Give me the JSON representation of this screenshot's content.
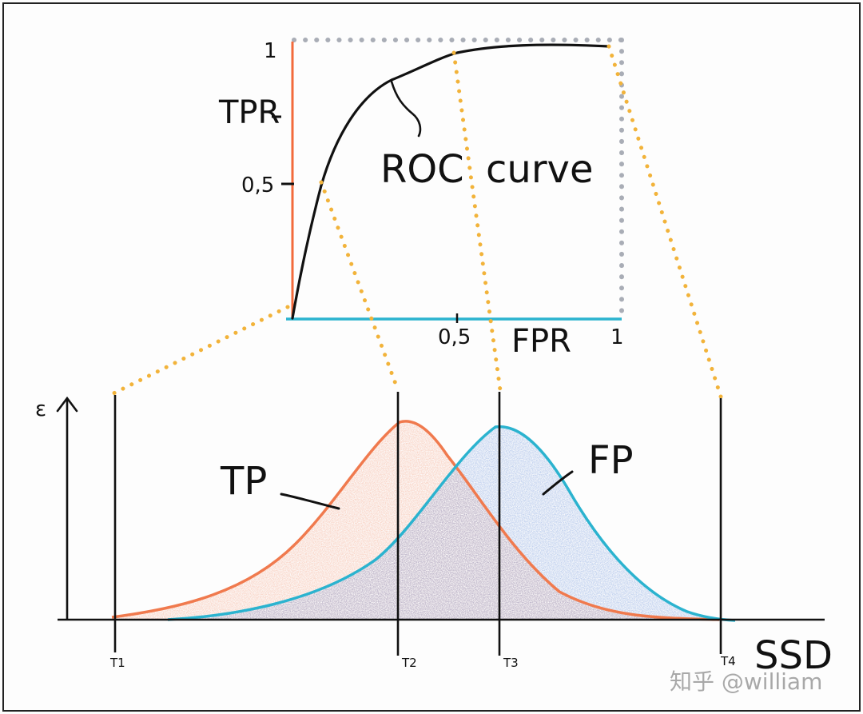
{
  "roc": {
    "y_tick_top": "1",
    "y_tick_mid": "0,5",
    "y_label": "TPR",
    "x_tick_mid": "0,5",
    "x_tick_end": "1",
    "x_label": "FPR",
    "curve_label_1": "ROC",
    "curve_label_2": "curve"
  },
  "distribution": {
    "y_label": "ε",
    "x_label": "SSD",
    "tp_label": "TP",
    "fp_label": "FP",
    "thresholds": [
      {
        "label": "T1"
      },
      {
        "label": "T2"
      },
      {
        "label": "T3"
      },
      {
        "label": "T4"
      }
    ]
  },
  "watermark": "知乎 @william",
  "colors": {
    "tp": "#f07a4e",
    "fp": "#2bb3cf",
    "fp_fill": "#5b86d6",
    "tpr_axis": "#f26a3c",
    "fpr_axis": "#2bb3cf",
    "connector": "#f2b33a",
    "frame": "#a9adb6",
    "ink": "#111111"
  }
}
